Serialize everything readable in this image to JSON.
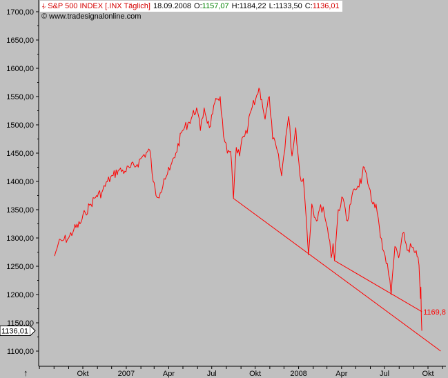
{
  "header": {
    "title": "S&P 500 INDEX [.INX  Täglich]",
    "date": "18.09.2008",
    "open_label": "O:",
    "open": "1157,07",
    "high_label": "H:",
    "high": "1184,22",
    "low_label": "L:",
    "low": "1133,50",
    "close_label": "C:",
    "close": "1136,01",
    "copyright": "© www.tradesignalonline.com"
  },
  "colors": {
    "background": "#c0c0c0",
    "line": "#ff0000",
    "axis": "#000000",
    "price_box": "#ffffff"
  },
  "icons": {
    "symbol": "price-chart-symbol-icon",
    "scroll": "scroll-up-arrow-icon"
  },
  "chart_data": {
    "type": "line",
    "title": "S&P 500 INDEX [.INX  Täglich]",
    "xlabel": "",
    "ylabel": "",
    "grid": false,
    "ylim": [
      1090,
      1720
    ],
    "xlim": [
      "2006-08-01",
      "2008-10-31"
    ],
    "y_ticks": [
      "1100,00",
      "1150,00",
      "1200,00",
      "1250,00",
      "1300,00",
      "1350,00",
      "1400,00",
      "1450,00",
      "1500,00",
      "1550,00",
      "1600,00",
      "1650,00",
      "1700,00"
    ],
    "x_tick_labels": [
      {
        "label": "Okt",
        "date": "2006-10-01"
      },
      {
        "label": "2007",
        "date": "2007-01-01"
      },
      {
        "label": "Apr",
        "date": "2007-04-01"
      },
      {
        "label": "Jul",
        "date": "2007-07-01"
      },
      {
        "label": "Okt",
        "date": "2007-10-01"
      },
      {
        "label": "2008",
        "date": "2008-01-01"
      },
      {
        "label": "Apr",
        "date": "2008-04-01"
      },
      {
        "label": "Jul",
        "date": "2008-07-01"
      },
      {
        "label": "Okt",
        "date": "2008-10-01"
      }
    ],
    "series": [
      {
        "points": [
          [
            "2006-08-02",
            1268
          ],
          [
            "2006-08-10",
            1290
          ],
          [
            "2006-08-22",
            1297
          ],
          [
            "2006-09-01",
            1300
          ],
          [
            "2006-09-12",
            1315
          ],
          [
            "2006-09-25",
            1325
          ],
          [
            "2006-10-06",
            1345
          ],
          [
            "2006-10-18",
            1360
          ],
          [
            "2006-10-30",
            1375
          ],
          [
            "2006-11-10",
            1380
          ],
          [
            "2006-11-22",
            1400
          ],
          [
            "2006-12-04",
            1410
          ],
          [
            "2006-12-15",
            1420
          ],
          [
            "2006-12-29",
            1418
          ],
          [
            "2007-01-10",
            1425
          ],
          [
            "2007-01-24",
            1430
          ],
          [
            "2007-02-05",
            1445
          ],
          [
            "2007-02-20",
            1455
          ],
          [
            "2007-02-27",
            1400
          ],
          [
            "2007-03-05",
            1375
          ],
          [
            "2007-03-14",
            1380
          ],
          [
            "2007-03-22",
            1405
          ],
          [
            "2007-04-03",
            1420
          ],
          [
            "2007-04-16",
            1450
          ],
          [
            "2007-04-30",
            1490
          ],
          [
            "2007-05-14",
            1505
          ],
          [
            "2007-05-30",
            1530
          ],
          [
            "2007-06-07",
            1490
          ],
          [
            "2007-06-15",
            1530
          ],
          [
            "2007-06-26",
            1495
          ],
          [
            "2007-07-03",
            1520
          ],
          [
            "2007-07-12",
            1545
          ],
          [
            "2007-07-19",
            1550
          ],
          [
            "2007-07-26",
            1480
          ],
          [
            "2007-08-03",
            1450
          ],
          [
            "2007-08-10",
            1453
          ],
          [
            "2007-08-16",
            1370
          ],
          [
            "2007-08-22",
            1460
          ],
          [
            "2007-08-29",
            1445
          ],
          [
            "2007-09-06",
            1480
          ],
          [
            "2007-09-14",
            1485
          ],
          [
            "2007-09-20",
            1520
          ],
          [
            "2007-10-02",
            1545
          ],
          [
            "2007-10-09",
            1565
          ],
          [
            "2007-10-15",
            1545
          ],
          [
            "2007-10-22",
            1510
          ],
          [
            "2007-10-31",
            1550
          ],
          [
            "2007-11-07",
            1475
          ],
          [
            "2007-11-15",
            1460
          ],
          [
            "2007-11-26",
            1410
          ],
          [
            "2007-12-05",
            1480
          ],
          [
            "2007-12-11",
            1515
          ],
          [
            "2007-12-18",
            1445
          ],
          [
            "2007-12-26",
            1495
          ],
          [
            "2008-01-04",
            1410
          ],
          [
            "2008-01-11",
            1405
          ],
          [
            "2008-01-18",
            1325
          ],
          [
            "2008-01-22",
            1270
          ],
          [
            "2008-01-29",
            1360
          ],
          [
            "2008-02-08",
            1330
          ],
          [
            "2008-02-14",
            1350
          ],
          [
            "2008-02-22",
            1355
          ],
          [
            "2008-02-29",
            1325
          ],
          [
            "2008-03-07",
            1295
          ],
          [
            "2008-03-10",
            1265
          ],
          [
            "2008-03-14",
            1290
          ],
          [
            "2008-03-17",
            1260
          ],
          [
            "2008-03-25",
            1350
          ],
          [
            "2008-04-04",
            1370
          ],
          [
            "2008-04-14",
            1330
          ],
          [
            "2008-04-23",
            1375
          ],
          [
            "2008-04-30",
            1385
          ],
          [
            "2008-05-08",
            1390
          ],
          [
            "2008-05-19",
            1425
          ],
          [
            "2008-05-29",
            1390
          ],
          [
            "2008-06-06",
            1360
          ],
          [
            "2008-06-13",
            1360
          ],
          [
            "2008-06-20",
            1320
          ],
          [
            "2008-06-27",
            1280
          ],
          [
            "2008-07-07",
            1255
          ],
          [
            "2008-07-15",
            1200
          ],
          [
            "2008-07-23",
            1285
          ],
          [
            "2008-07-31",
            1265
          ],
          [
            "2008-08-11",
            1310
          ],
          [
            "2008-08-18",
            1278
          ],
          [
            "2008-08-27",
            1285
          ],
          [
            "2008-09-02",
            1275
          ],
          [
            "2008-09-08",
            1267
          ],
          [
            "2008-09-12",
            1252
          ],
          [
            "2008-09-15",
            1193
          ],
          [
            "2008-09-16",
            1213
          ],
          [
            "2008-09-17",
            1160
          ],
          [
            "2008-09-18",
            1136
          ]
        ]
      }
    ],
    "trendlines": [
      {
        "from": [
          "2007-08-16",
          1370
        ],
        "to": [
          "2008-10-28",
          1100
        ]
      },
      {
        "from": [
          "2008-03-17",
          1260
        ],
        "to": [
          "2008-09-18",
          1169.8
        ]
      }
    ],
    "annotations": [
      {
        "text": "1169,8",
        "date": "2008-09-18",
        "value": 1169.8
      }
    ],
    "last_value_label": "1136,01"
  }
}
